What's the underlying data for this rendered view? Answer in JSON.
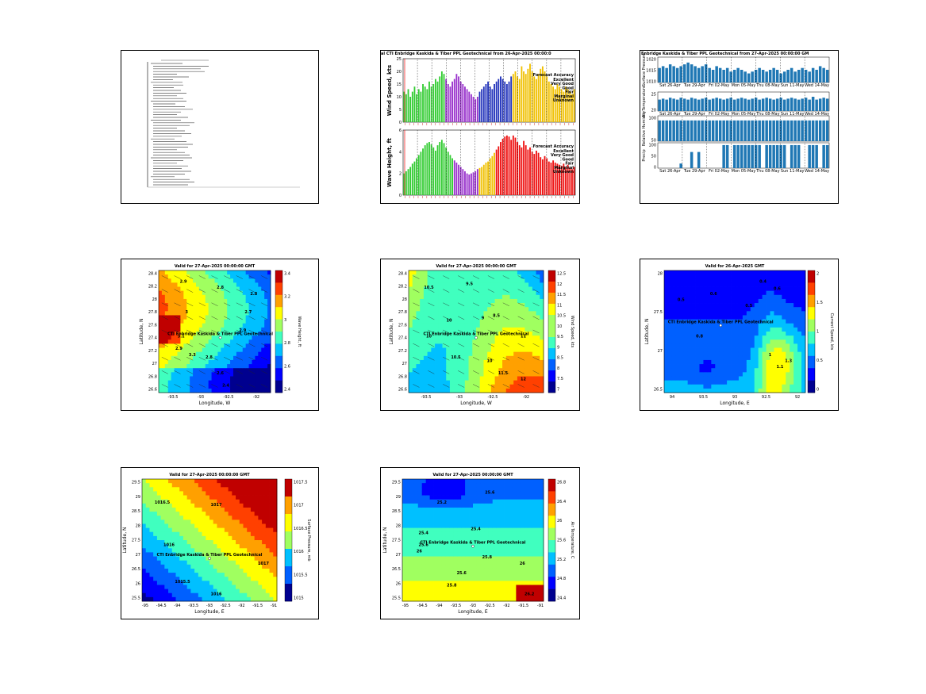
{
  "colors": {
    "green": "#33cc33",
    "purple": "#9933cc",
    "blue": "#2233bb",
    "gold": "#f0c000",
    "red": "#ee1111",
    "bar_blue": "#1f77b4",
    "jet": [
      "#00008f",
      "#0000ff",
      "#0060ff",
      "#00c0ff",
      "#40ffbf",
      "#a0ff60",
      "#ffff00",
      "#ffa000",
      "#ff4000",
      "#c00000"
    ]
  },
  "site_label": "CTI Enbridge  Kaskida & Tiber PPL Geotechnical",
  "report": {
    "lines": [
      "Forecast Summary",
      "Site Information",
      "Wind",
      "Waves",
      "Currents",
      "Pressure",
      "Temperature",
      "Notes"
    ]
  },
  "chart_data": [
    {
      "type": "bar",
      "id": "wind",
      "title": "al CTI Enbridge  Kaskida & Tiber PPL Geotechnical from 26-Apr-2025 00:00:0",
      "ylabel": "Wind Speed, kts",
      "ylim": [
        0,
        25
      ],
      "yticks": [
        0,
        5,
        10,
        15,
        20,
        25
      ],
      "legend_title": "Forecast Accuracy",
      "legend": [
        {
          "label": "Excellent",
          "color": "#33cc33"
        },
        {
          "label": "Very Good",
          "color": "#9933cc"
        },
        {
          "label": "Good",
          "color": "#2233bb"
        },
        {
          "label": "Fair",
          "color": "#f0c000"
        },
        {
          "label": "Marginal",
          "color": "#ee1111"
        },
        {
          "label": "Unknown",
          "color": "#000000"
        }
      ],
      "values": [
        12,
        11,
        13,
        10,
        12,
        14,
        11,
        13,
        12,
        15,
        14,
        13,
        16,
        14,
        15,
        17,
        16,
        18,
        20,
        19,
        17,
        15,
        14,
        16,
        17,
        19,
        18,
        16,
        15,
        14,
        13,
        12,
        11,
        10,
        9,
        10,
        12,
        13,
        14,
        15,
        16,
        14,
        13,
        15,
        16,
        17,
        18,
        17,
        16,
        15,
        16,
        18,
        19,
        20,
        18,
        17,
        22,
        20,
        19,
        21,
        23,
        20,
        18,
        17,
        19,
        21,
        22,
        20,
        18,
        16,
        15,
        14,
        13,
        15,
        14,
        13,
        12,
        14,
        13,
        12,
        11,
        13
      ],
      "color_breaks": [
        [
          0,
          "#33cc33"
        ],
        [
          20,
          "#9933cc"
        ],
        [
          36,
          "#2233bb"
        ],
        [
          52,
          "#f0c000"
        ]
      ]
    },
    {
      "type": "bar",
      "id": "wave",
      "title": "",
      "ylabel": "Wave Height, ft",
      "ylim": [
        0,
        6
      ],
      "yticks": [
        0,
        2,
        4,
        6
      ],
      "legend_title": "Forecast Accuracy",
      "legend": [
        {
          "label": "Excellent",
          "color": "#33cc33"
        },
        {
          "label": "Very Good",
          "color": "#9933cc"
        },
        {
          "label": "Good",
          "color": "#2233bb"
        },
        {
          "label": "Fair",
          "color": "#f0c000"
        },
        {
          "label": "Marginal",
          "color": "#ee1111"
        },
        {
          "label": "Unknown",
          "color": "#000000"
        }
      ],
      "values": [
        2.0,
        2.2,
        2.4,
        2.6,
        2.9,
        3.1,
        3.4,
        3.7,
        4.0,
        4.3,
        4.6,
        4.8,
        4.9,
        4.7,
        4.4,
        4.1,
        4.6,
        4.9,
        5.1,
        4.8,
        4.4,
        4.0,
        3.7,
        3.4,
        3.2,
        3.0,
        2.8,
        2.6,
        2.4,
        2.2,
        2.0,
        1.9,
        2.0,
        2.1,
        2.2,
        2.4,
        2.5,
        2.6,
        2.8,
        3.0,
        3.1,
        3.4,
        3.6,
        3.9,
        4.2,
        4.5,
        4.9,
        5.2,
        5.4,
        5.5,
        5.4,
        5.1,
        5.5,
        5.3,
        4.9,
        4.6,
        4.4,
        5.0,
        4.6,
        4.2,
        4.4,
        4.0,
        3.8,
        4.1,
        3.9,
        3.5,
        3.3,
        3.6,
        3.4,
        3.1,
        3.0,
        3.2,
        3.0,
        2.9,
        2.8,
        2.7,
        2.9,
        2.6,
        2.8,
        2.5,
        2.4,
        2.6
      ],
      "color_breaks": [
        [
          0,
          "#33cc33"
        ],
        [
          24,
          "#9933cc"
        ],
        [
          36,
          "#f0c000"
        ],
        [
          44,
          "#ee1111"
        ]
      ]
    },
    {
      "type": "bar",
      "id": "pressure_ts",
      "title": "Enbridge  Kaskida & Tiber PPL Geotechnical from 27-Apr-2025 00:00:00 GM",
      "ylabel": "Surface Pressure",
      "yticks_text": [
        "1020",
        "1015",
        "1010"
      ],
      "xtick_labels": [
        "Sat 26-Apr",
        "Tue 29-Apr",
        "Fri 02-May",
        "Mon 05-May",
        "Thu 08-May",
        "Sun 11-May",
        "Wed 14-May"
      ],
      "ylim": [
        1008,
        1022
      ],
      "values": [
        1016,
        1017,
        1016,
        1018,
        1017,
        1016,
        1017,
        1018,
        1019,
        1018,
        1017,
        1016,
        1017,
        1018,
        1016,
        1015,
        1017,
        1016,
        1015,
        1016,
        1014,
        1015,
        1016,
        1015,
        1014,
        1013,
        1014,
        1015,
        1016,
        1015,
        1014,
        1015,
        1016,
        1015,
        1013,
        1014,
        1015,
        1016,
        1014,
        1015,
        1016,
        1015,
        1014,
        1016,
        1015,
        1017,
        1016,
        1015
      ]
    },
    {
      "type": "bar",
      "id": "temp_ts",
      "title": "",
      "ylabel": "Air Temperature",
      "yticks_text": [
        "25",
        "20"
      ],
      "ylim": [
        18,
        28
      ],
      "values": [
        24,
        24.5,
        24,
        25,
        24.5,
        24,
        25,
        24.5,
        24,
        25,
        24.5,
        24,
        24.5,
        25,
        24,
        24.5,
        25,
        24.5,
        24,
        24.5,
        25,
        24,
        24.5,
        25,
        24.5,
        24,
        24.5,
        25,
        24,
        24.5,
        25,
        24.5,
        24,
        24.5,
        25,
        24,
        24.5,
        25,
        24.5,
        24,
        24.5,
        25,
        24,
        25.5,
        24,
        24.5,
        25,
        24.5
      ]
    },
    {
      "type": "bar",
      "id": "humid_ts",
      "title": "",
      "ylabel": "Relative Humidity",
      "yticks_text": [
        "100",
        "50"
      ],
      "ylim": [
        0,
        110
      ],
      "values": [
        90,
        90,
        90,
        90,
        90,
        90,
        90,
        90,
        90,
        90,
        90,
        90,
        90,
        90,
        90,
        90,
        90,
        90,
        90,
        90,
        90,
        90,
        90,
        90,
        90,
        90,
        90,
        90,
        90,
        90,
        90,
        90,
        90,
        90,
        90,
        90,
        90,
        90,
        90,
        90,
        90,
        90,
        90,
        90,
        90,
        90,
        90,
        90
      ]
    },
    {
      "type": "bar",
      "id": "precip_ts",
      "title": "",
      "ylabel": "Precip",
      "yticks_text": [
        "100",
        "50",
        "0"
      ],
      "ylim": [
        0,
        110
      ],
      "values": [
        0,
        0,
        0,
        0,
        0,
        0,
        20,
        0,
        0,
        70,
        0,
        70,
        0,
        0,
        0,
        0,
        0,
        0,
        100,
        100,
        0,
        100,
        100,
        100,
        100,
        100,
        100,
        100,
        100,
        0,
        100,
        100,
        100,
        100,
        100,
        100,
        0,
        100,
        100,
        100,
        0,
        0,
        100,
        100,
        100,
        0,
        100,
        100
      ]
    },
    {
      "type": "heatmap",
      "id": "wave_map",
      "title": "Valid for 27-Apr-2025 00:00:00 GMT",
      "xlabel": "Longitude, W",
      "ylabel": "Latitude, N",
      "cbar_label": "Wave Height, ft",
      "xticks": [
        "-93.5",
        "-93",
        "-92.5",
        "-92"
      ],
      "yticks": [
        "28.4",
        "28.2",
        "28",
        "27.8",
        "27.6",
        "27.4",
        "27.2",
        "27",
        "26.8",
        "26.6"
      ],
      "cbar_ticks": [
        "3.4",
        "3.2",
        "3",
        "2.8",
        "2.6",
        "2.4"
      ],
      "contour_labels": [
        "2.9",
        "2.8",
        "2.8",
        "3",
        "2.7",
        "2.9",
        "3.1",
        "2.9",
        "3.3",
        "2.8",
        "2.6",
        "2.4"
      ]
    },
    {
      "type": "heatmap",
      "id": "wind_map",
      "title": "Valid for 27-Apr-2025 00:00:00 GMT",
      "xlabel": "Longitude, W",
      "ylabel": "Latitude, N",
      "cbar_label": "Wind Speed, kts",
      "xticks": [
        "-93.5",
        "-93",
        "-92.5",
        "-92"
      ],
      "yticks": [
        "28.4",
        "28.2",
        "28",
        "27.8",
        "27.6",
        "27.4",
        "27.2",
        "27",
        "26.8",
        "26.6"
      ],
      "cbar_ticks": [
        "12.5",
        "12",
        "11.5",
        "11",
        "10.5",
        "10",
        "9.5",
        "9",
        "8.5",
        "8",
        "7.5",
        "7"
      ],
      "contour_labels": [
        "10.5",
        "9.5",
        "10",
        "9",
        "8.5",
        "10",
        "10.5",
        "10",
        "11",
        "11.5",
        "12"
      ]
    },
    {
      "type": "heatmap",
      "id": "current_map",
      "title": "Valid for 26-Apr-2025 GMT",
      "xlabel": "Longitude, E",
      "ylabel": "Latitude, N",
      "cbar_label": "Current Speed, kts",
      "xticks": [
        "94",
        "93.5",
        "93",
        "92.5",
        "92"
      ],
      "yticks": [
        "28",
        "27.5",
        "27",
        "26.5"
      ],
      "cbar_ticks": [
        "2",
        "1.5",
        "1",
        "0.5",
        "0"
      ],
      "contour_labels": [
        "0.4",
        "0.6",
        "0.5",
        "0.6",
        "0.5",
        "0.8",
        "1",
        "1.1",
        "1.3"
      ]
    },
    {
      "type": "heatmap",
      "id": "pressure_map",
      "title": "Valid for 27-Apr-2025 00:00:00 GMT",
      "xlabel": "Longitude, E",
      "ylabel": "Latitude, N",
      "cbar_label": "Surface Pressure, mb",
      "xticks": [
        "-95",
        "-94.5",
        "-94",
        "-93.5",
        "-93",
        "-92.5",
        "-92",
        "-91.5",
        "-91"
      ],
      "yticks": [
        "29.5",
        "29",
        "28.5",
        "28",
        "27.5",
        "27",
        "26.5",
        "26",
        "25.5"
      ],
      "cbar_ticks": [
        "1017.5",
        "1017",
        "1016.5",
        "1016",
        "1015.5",
        "1015"
      ],
      "contour_labels": [
        "1016.5",
        "1017",
        "1016",
        "1016",
        "1015.5",
        "1017"
      ]
    },
    {
      "type": "heatmap",
      "id": "temp_map",
      "title": "Valid for 27-Apr-2025 00:00:00 GMT",
      "xlabel": "Longitude, E",
      "ylabel": "Latitude, N",
      "cbar_label": "Air Temperature, C",
      "xticks": [
        "-95",
        "-94.5",
        "-94",
        "-93.5",
        "-93",
        "-92.5",
        "-92",
        "-91.5",
        "-91"
      ],
      "yticks": [
        "29.5",
        "29",
        "28.5",
        "28",
        "27.5",
        "27",
        "26.5",
        "26",
        "25.5"
      ],
      "cbar_ticks": [
        "26.8",
        "26.4",
        "26",
        "25.6",
        "25.2",
        "24.8",
        "24.4"
      ],
      "contour_labels": [
        "25.2",
        "25.6",
        "25.4",
        "25.4",
        "25.6",
        "25.8",
        "25.8",
        "26",
        "26",
        "26.2",
        "25.6"
      ]
    }
  ]
}
